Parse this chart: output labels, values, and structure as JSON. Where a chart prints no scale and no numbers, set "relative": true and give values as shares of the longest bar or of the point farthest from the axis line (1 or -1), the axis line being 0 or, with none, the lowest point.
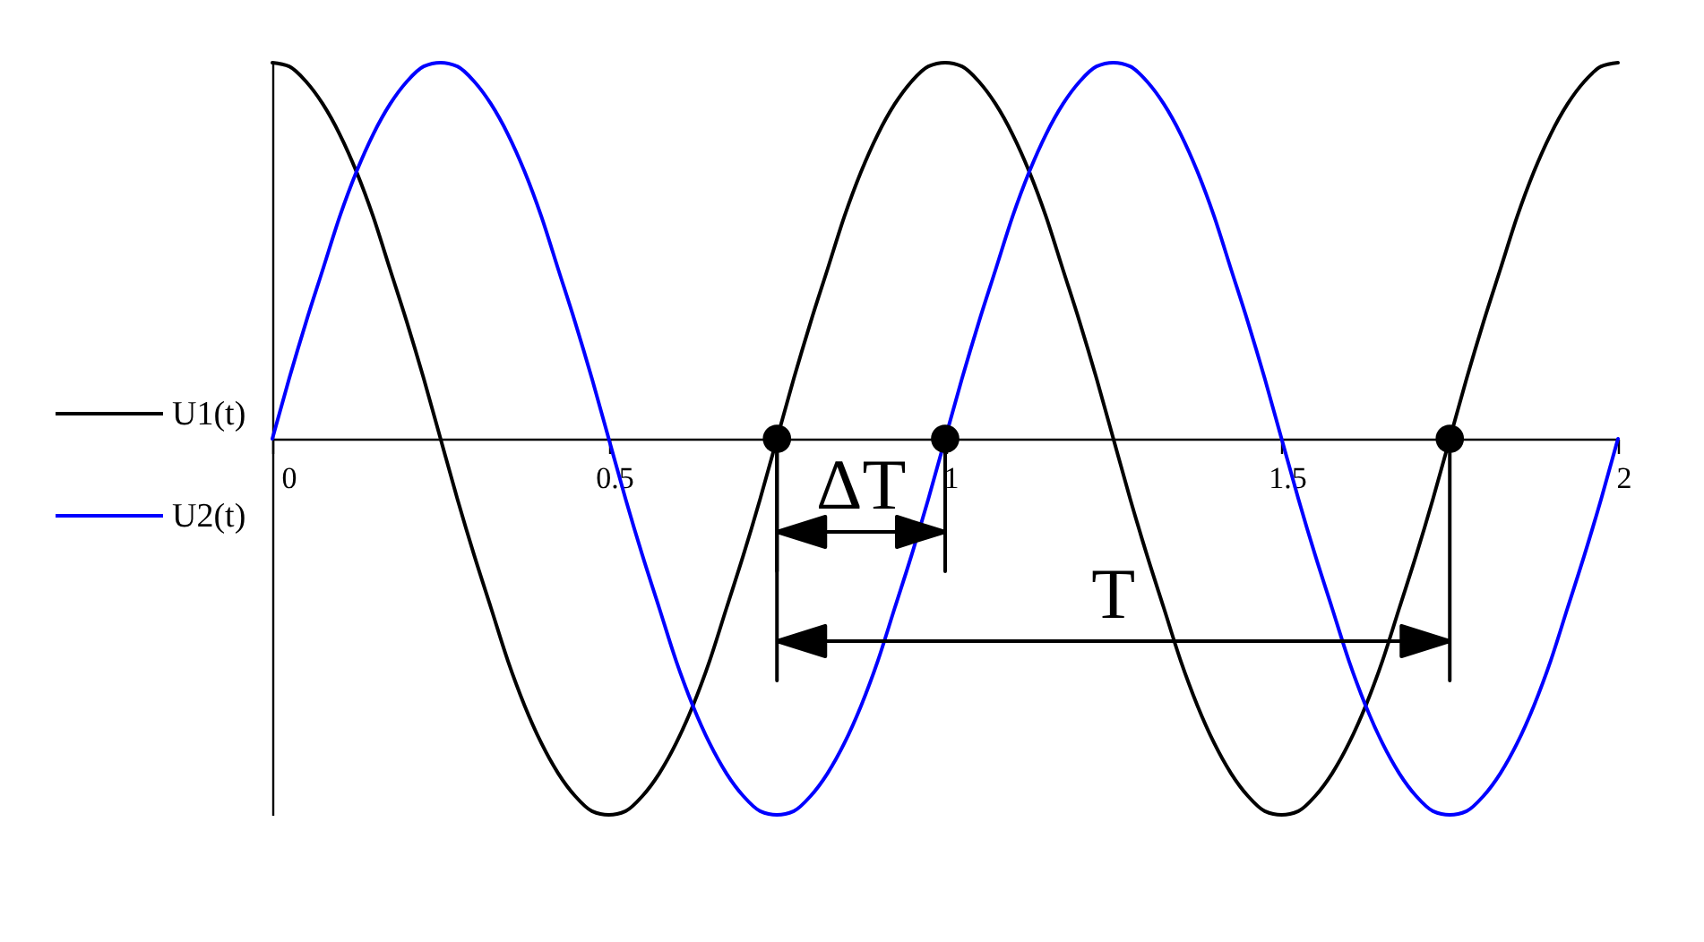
{
  "chart_data": {
    "type": "line",
    "relative": true,
    "x": [
      0,
      0.025,
      0.05,
      0.075,
      0.1,
      0.125,
      0.15,
      0.175,
      0.2,
      0.225,
      0.25,
      0.275,
      0.3,
      0.325,
      0.35,
      0.375,
      0.4,
      0.425,
      0.45,
      0.475,
      0.5,
      0.525,
      0.55,
      0.575,
      0.6,
      0.625,
      0.65,
      0.675,
      0.7,
      0.725,
      0.75,
      0.775,
      0.8,
      0.825,
      0.85,
      0.875,
      0.9,
      0.925,
      0.95,
      0.975,
      1,
      1.025,
      1.05,
      1.075,
      1.1,
      1.125,
      1.15,
      1.175,
      1.2,
      1.225,
      1.25,
      1.275,
      1.3,
      1.325,
      1.35,
      1.375,
      1.4,
      1.425,
      1.45,
      1.475,
      1.5,
      1.525,
      1.55,
      1.575,
      1.6,
      1.625,
      1.65,
      1.675,
      1.7,
      1.725,
      1.75,
      1.775,
      1.8,
      1.825,
      1.85,
      1.875,
      1.9,
      1.925,
      1.95,
      1.975,
      2
    ],
    "xlim": [
      0,
      2
    ],
    "xticks": [
      0,
      0.5,
      1,
      1.5,
      2
    ],
    "series": [
      {
        "name": "U1(t)",
        "color": "#000000",
        "values": [
          1,
          0.99,
          0.95,
          0.89,
          0.81,
          0.71,
          0.59,
          0.45,
          0.31,
          0.16,
          0,
          -0.16,
          -0.31,
          -0.45,
          -0.59,
          -0.71,
          -0.81,
          -0.89,
          -0.95,
          -0.99,
          -1,
          -0.99,
          -0.95,
          -0.89,
          -0.81,
          -0.71,
          -0.59,
          -0.45,
          -0.31,
          -0.16,
          0,
          0.16,
          0.31,
          0.45,
          0.59,
          0.71,
          0.81,
          0.89,
          0.95,
          0.99,
          1,
          0.99,
          0.95,
          0.89,
          0.81,
          0.71,
          0.59,
          0.45,
          0.31,
          0.16,
          0,
          -0.16,
          -0.31,
          -0.45,
          -0.59,
          -0.71,
          -0.81,
          -0.89,
          -0.95,
          -0.99,
          -1,
          -0.99,
          -0.95,
          -0.89,
          -0.81,
          -0.71,
          -0.59,
          -0.45,
          -0.31,
          -0.16,
          0,
          0.16,
          0.31,
          0.45,
          0.59,
          0.71,
          0.81,
          0.89,
          0.95,
          0.99,
          1
        ]
      },
      {
        "name": "U2(t)",
        "color": "#0000ff",
        "values": [
          0,
          0.16,
          0.31,
          0.45,
          0.59,
          0.71,
          0.81,
          0.89,
          0.95,
          0.99,
          1,
          0.99,
          0.95,
          0.89,
          0.81,
          0.71,
          0.59,
          0.45,
          0.31,
          0.16,
          0,
          -0.16,
          -0.31,
          -0.45,
          -0.59,
          -0.71,
          -0.81,
          -0.89,
          -0.95,
          -0.99,
          -1,
          -0.99,
          -0.95,
          -0.89,
          -0.81,
          -0.71,
          -0.59,
          -0.45,
          -0.31,
          -0.16,
          0,
          0.16,
          0.31,
          0.45,
          0.59,
          0.71,
          0.81,
          0.89,
          0.95,
          0.99,
          1,
          0.99,
          0.95,
          0.89,
          0.81,
          0.71,
          0.59,
          0.45,
          0.31,
          0.16,
          0,
          -0.16,
          -0.31,
          -0.45,
          -0.59,
          -0.71,
          -0.81,
          -0.89,
          -0.95,
          -0.99,
          -1,
          -0.99,
          -0.95,
          -0.89,
          -0.81,
          -0.71,
          -0.59,
          -0.45,
          -0.31,
          -0.16,
          0
        ]
      },
      {
        "type": "scatter",
        "color": "#000000",
        "marker": "circle",
        "x": [
          0.75,
          1,
          1.75
        ],
        "values": [
          0,
          0,
          0
        ]
      }
    ],
    "legend": "left",
    "annotations": [
      "ΔT",
      "T"
    ]
  }
}
